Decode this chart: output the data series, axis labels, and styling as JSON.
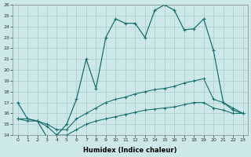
{
  "xlabel": "Humidex (Indice chaleur)",
  "x": [
    0,
    1,
    2,
    3,
    4,
    5,
    6,
    7,
    8,
    9,
    10,
    11,
    12,
    13,
    14,
    15,
    16,
    17,
    18,
    19,
    20,
    21,
    22,
    23
  ],
  "line_main": [
    17.0,
    15.5,
    15.3,
    13.8,
    14.0,
    15.0,
    17.3,
    21.0,
    18.3,
    23.0,
    24.7,
    24.3,
    24.3,
    23.0,
    25.5,
    26.0,
    25.5,
    23.7,
    23.8,
    24.7,
    21.8,
    17.0,
    16.3,
    16.0
  ],
  "line_upper": [
    15.5,
    15.5,
    15.3,
    15.0,
    14.5,
    14.5,
    15.5,
    16.0,
    16.5,
    17.0,
    17.3,
    17.5,
    17.8,
    18.0,
    18.2,
    18.3,
    18.5,
    18.8,
    19.0,
    19.2,
    17.3,
    17.0,
    16.5,
    16.0
  ],
  "line_lower": [
    15.5,
    15.3,
    15.3,
    14.8,
    14.0,
    14.0,
    14.5,
    15.0,
    15.3,
    15.5,
    15.7,
    15.9,
    16.1,
    16.3,
    16.4,
    16.5,
    16.6,
    16.8,
    17.0,
    17.0,
    16.5,
    16.3,
    16.0,
    16.0
  ],
  "line_color": "#1a7070",
  "bg_color": "#cce8e8",
  "grid_color": "#b0d0d0",
  "ylim": [
    14,
    26
  ],
  "xlim": [
    -0.5,
    23.5
  ],
  "yticks": [
    14,
    15,
    16,
    17,
    18,
    19,
    20,
    21,
    22,
    23,
    24,
    25,
    26
  ],
  "xticks": [
    0,
    1,
    2,
    3,
    4,
    5,
    6,
    7,
    8,
    9,
    10,
    11,
    12,
    13,
    14,
    15,
    16,
    17,
    18,
    19,
    20,
    21,
    22,
    23
  ]
}
